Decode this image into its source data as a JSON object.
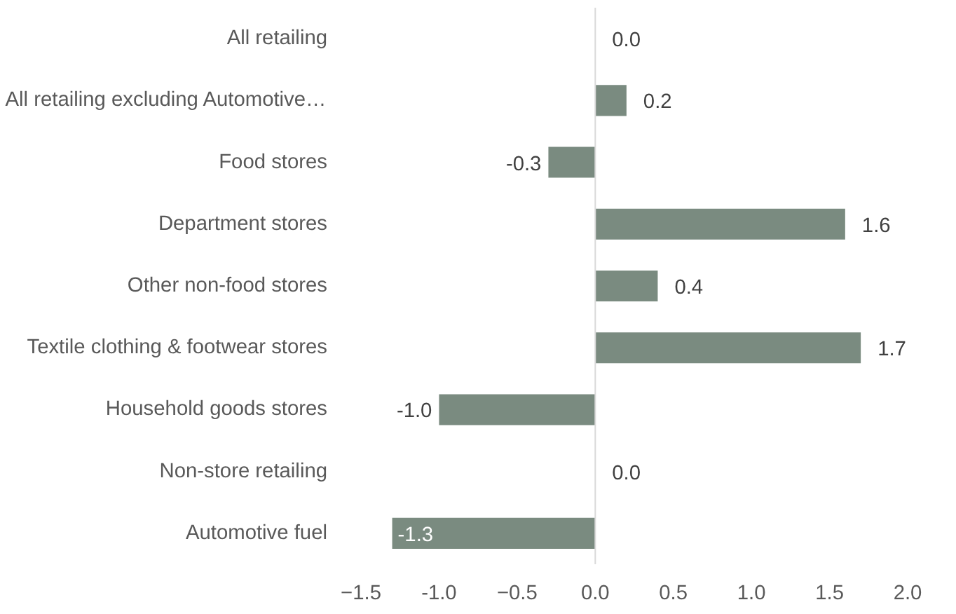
{
  "chart_data": {
    "type": "bar",
    "orientation": "horizontal",
    "categories": [
      "All retailing",
      "All retailing excluding Automotive…",
      "Food stores",
      "Department stores",
      "Other non-food stores",
      "Textile clothing & footwear stores",
      "Household goods stores",
      "Non-store retailing",
      "Automotive fuel"
    ],
    "values": [
      0.0,
      0.2,
      -0.3,
      1.6,
      0.4,
      1.7,
      -1.0,
      0.0,
      -1.3
    ],
    "value_labels": [
      "0.0",
      "0.2",
      "-0.3",
      "1.6",
      "0.4",
      "1.7",
      "-1.0",
      "0.0",
      "-1.3"
    ],
    "color": "#7a8b80",
    "xlim": [
      -1.5,
      2.0
    ],
    "xticks": [
      -1.5,
      {
        "value": -1,
        "label": "-1.0"
      },
      -0.5,
      {
        "value": 0,
        "label": "0.0"
      },
      0.5,
      {
        "value": 1,
        "label": "1.0"
      },
      1.5,
      {
        "value": 2,
        "label": "2.0"
      }
    ],
    "ref_lines": [
      {
        "axis": "x",
        "value": 0,
        "color": "#d9d9d9"
      }
    ]
  }
}
